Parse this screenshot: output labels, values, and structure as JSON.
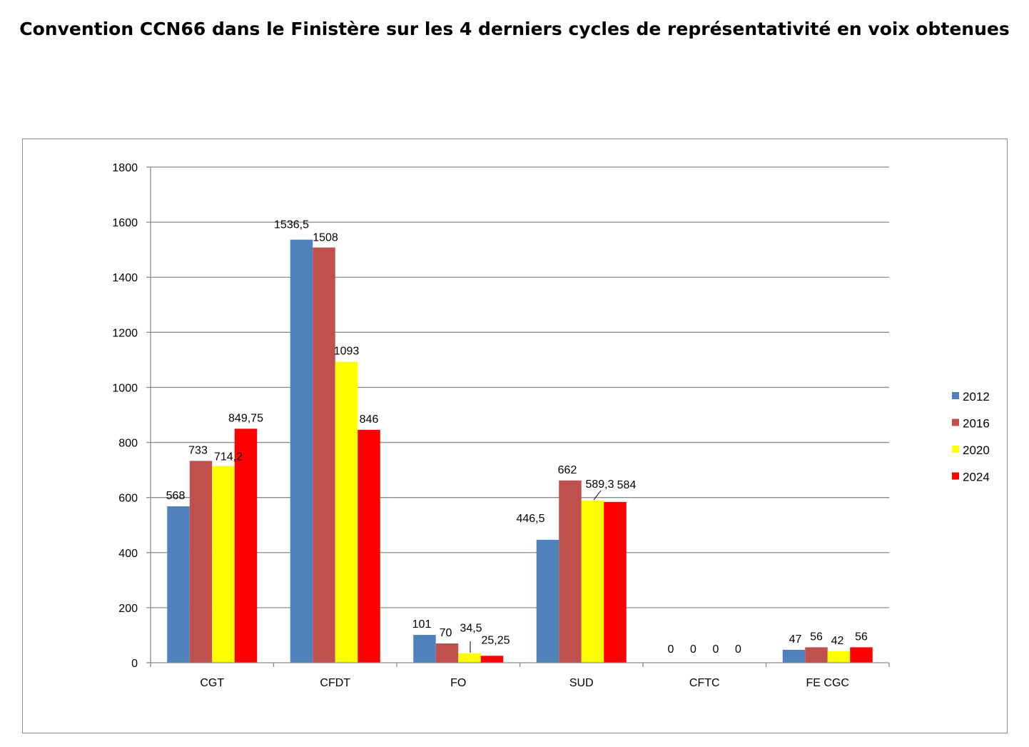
{
  "chart_data": {
    "type": "bar",
    "title": "Convention CCN66 dans le Finistère sur les 4 derniers cycles de représentativité en voix obtenues",
    "xlabel": "",
    "ylabel": "",
    "ylim": [
      0,
      1800
    ],
    "yticks": [
      0,
      200,
      400,
      600,
      800,
      1000,
      1200,
      1400,
      1600,
      1800
    ],
    "grid": true,
    "legend_position": "right",
    "categories": [
      "CGT",
      "CFDT",
      "FO",
      "SUD",
      "CFTC",
      "FE CGC"
    ],
    "series": [
      {
        "name": "2012",
        "color": "#4f81bd",
        "values": [
          568,
          1536.5,
          101,
          446.5,
          0,
          47
        ],
        "labels": [
          "568",
          "1536,5",
          "101",
          "446,5",
          "0",
          "47"
        ]
      },
      {
        "name": "2016",
        "color": "#c0504d",
        "values": [
          733,
          1508,
          70,
          662,
          0,
          56
        ],
        "labels": [
          "733",
          "1508",
          "70",
          "662",
          "0",
          "56"
        ]
      },
      {
        "name": "2020",
        "color": "#ffff00",
        "values": [
          714.2,
          1093,
          34.5,
          589.3,
          0,
          42
        ],
        "labels": [
          "714,2",
          "1093",
          "34,5",
          "589,3",
          "0",
          "42"
        ]
      },
      {
        "name": "2024",
        "color": "#ff0000",
        "values": [
          849.75,
          846,
          25.25,
          584,
          0,
          56
        ],
        "labels": [
          "849,75",
          "846",
          "25,25",
          "584",
          "0",
          "56"
        ]
      }
    ]
  }
}
